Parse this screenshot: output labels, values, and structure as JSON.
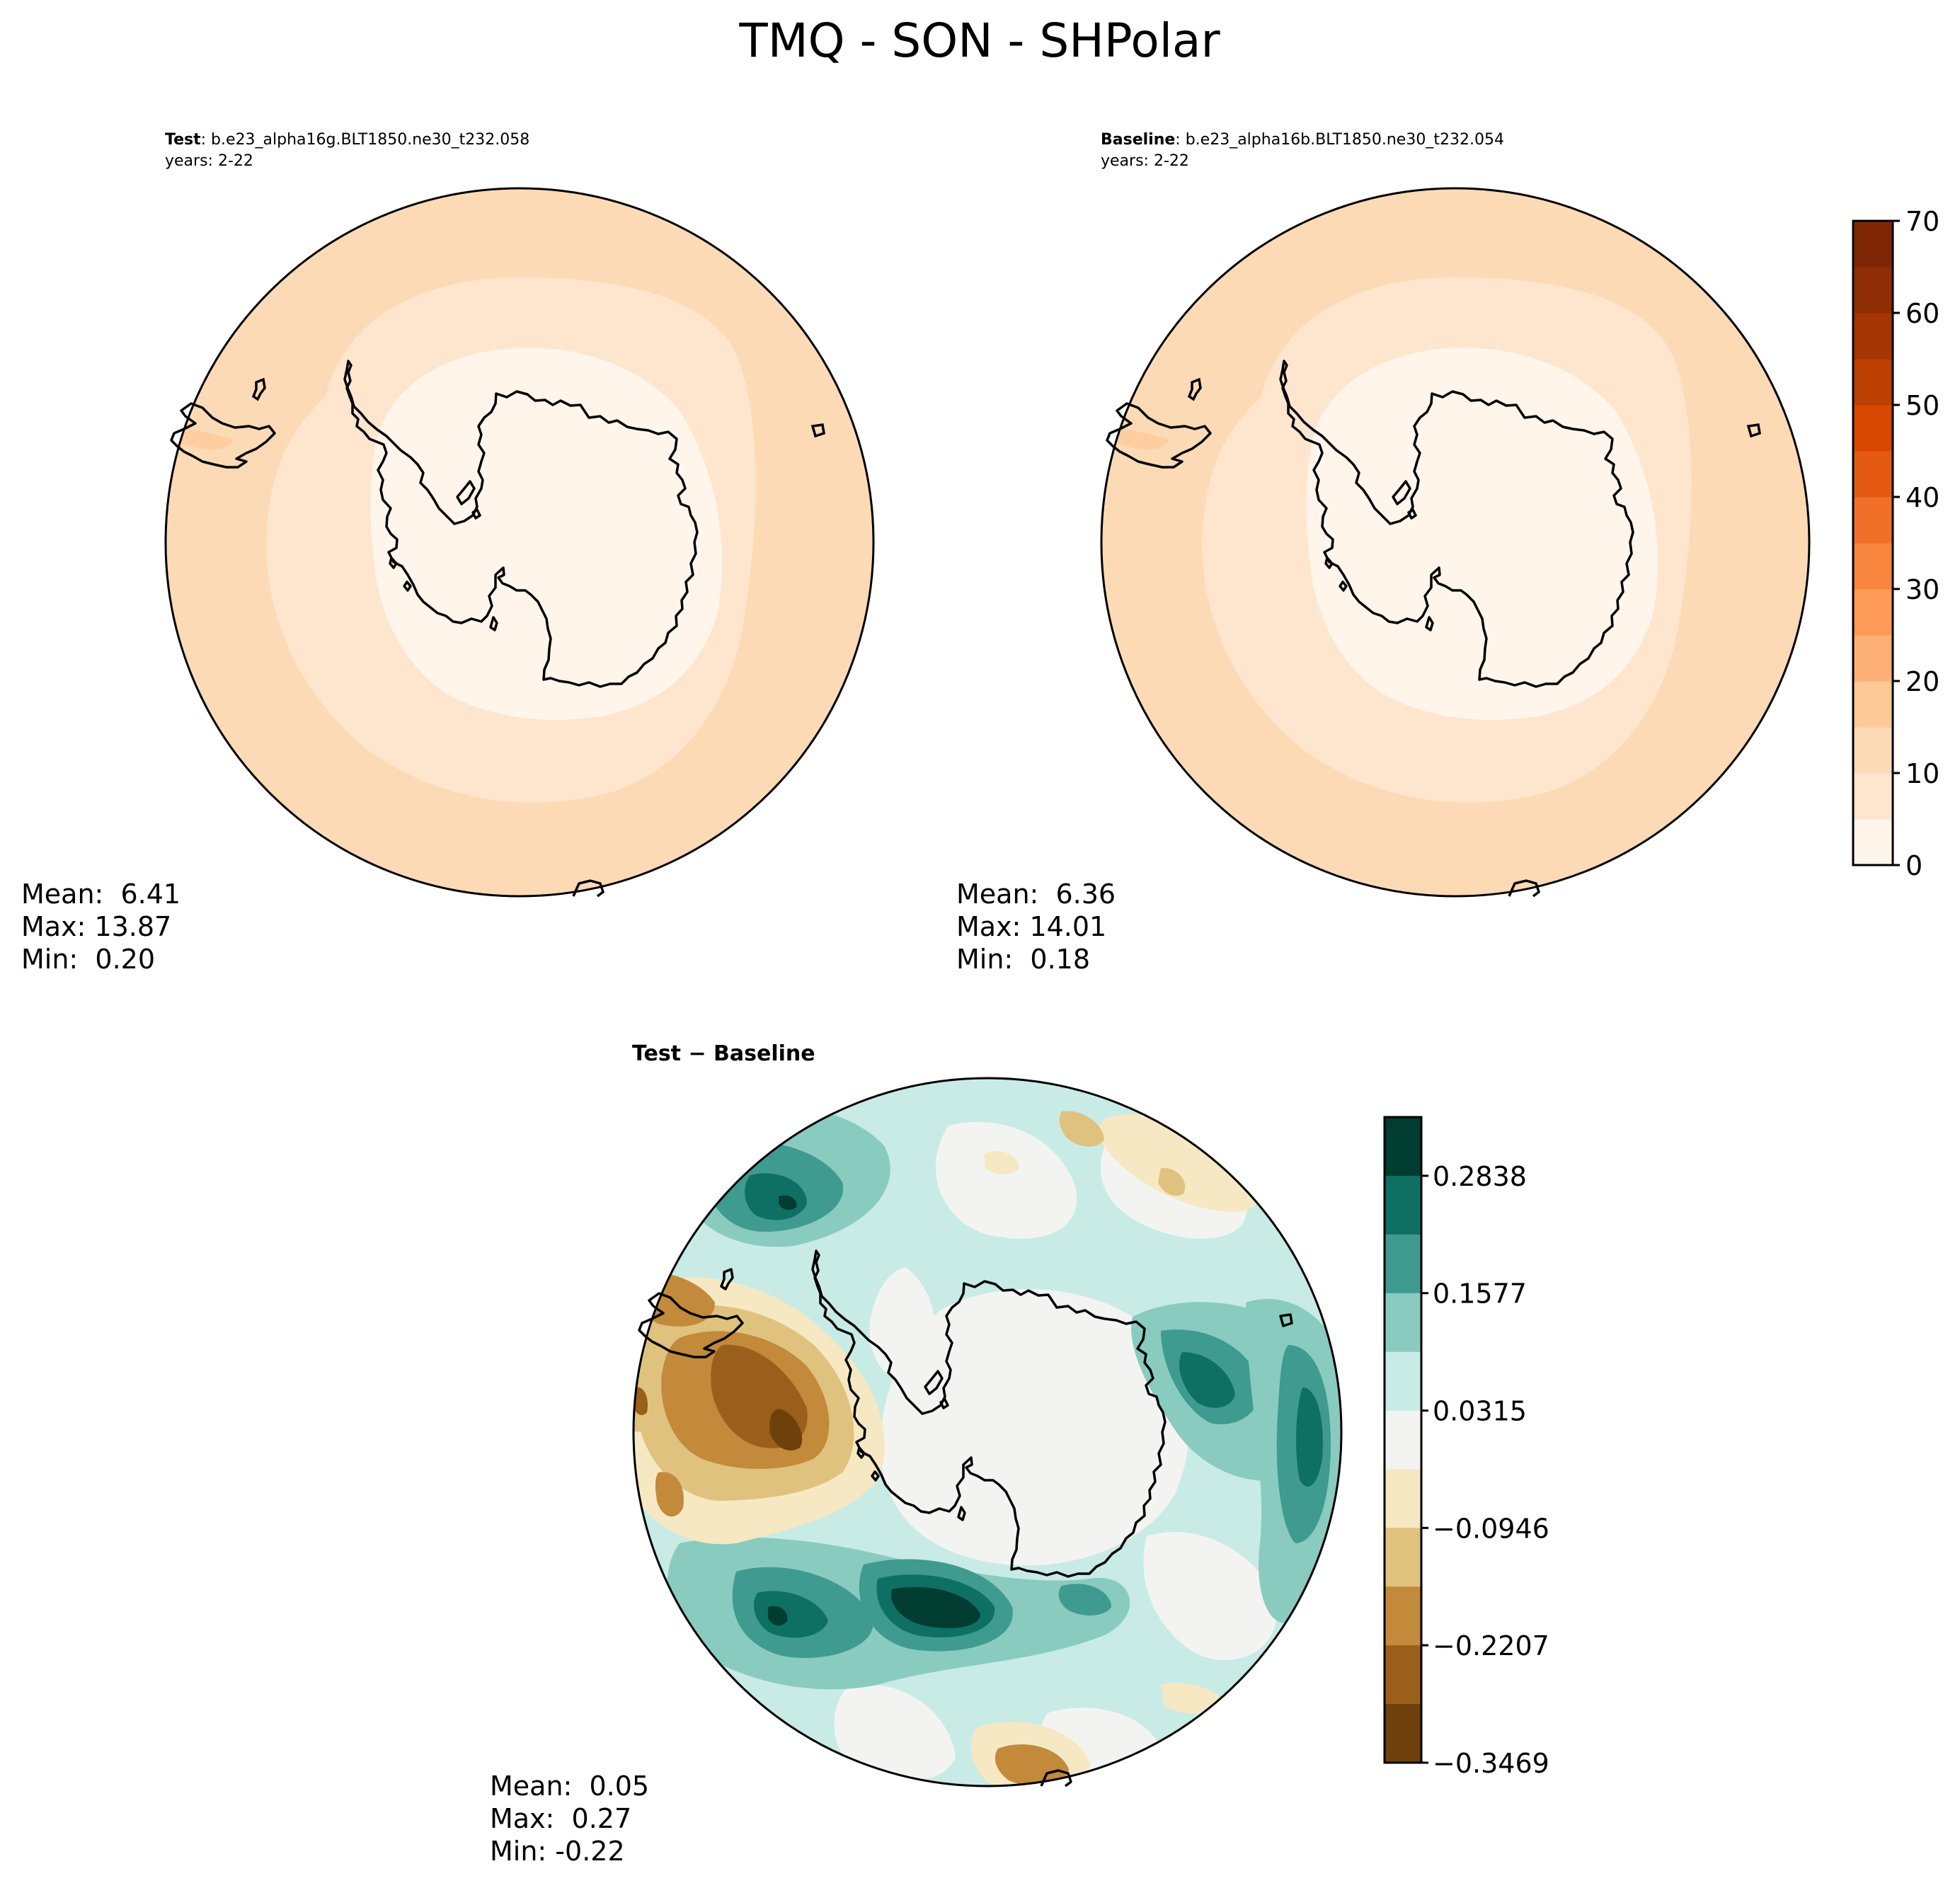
{
  "chart_data": {
    "type": "map-contour",
    "title": "TMQ - SON - SHPolar",
    "panels": [
      {
        "id": "test",
        "label_bold": "Test",
        "label_rest": ": b.e23_alpha16g.BLT1850.ne30_t232.058",
        "years": "years: 2-22",
        "stats": {
          "mean": "Mean:  6.41",
          "max": "Max: 13.87",
          "min": "Min:  0.20"
        },
        "band_values": [
          12.5,
          7.5,
          2.5
        ]
      },
      {
        "id": "baseline",
        "label_bold": "Baseline",
        "label_rest": ": b.e23_alpha16b.BLT1850.ne30_t232.054",
        "years": "years: 2-22",
        "stats": {
          "mean": "Mean:  6.36",
          "max": "Max: 14.01",
          "min": "Min:  0.18"
        },
        "band_values": [
          12.5,
          7.5,
          2.5
        ]
      },
      {
        "id": "difference",
        "label_bold": "Test − Baseline",
        "stats": {
          "mean": "Mean:  0.05",
          "max": "Max:  0.27",
          "min": "Min: -0.22"
        }
      }
    ],
    "colorbar_main": {
      "range": [
        0,
        70
      ],
      "levels": [
        0,
        5,
        10,
        15,
        20,
        25,
        30,
        35,
        40,
        45,
        50,
        55,
        60,
        65,
        70
      ],
      "ticks": [
        "0",
        "10",
        "20",
        "30",
        "40",
        "50",
        "60",
        "70"
      ],
      "colors": [
        "#fff5eb",
        "#fee6ce",
        "#fddab6",
        "#fdc997",
        "#fdb076",
        "#fd9a57",
        "#f8853e",
        "#f07029",
        "#e45a13",
        "#d94801",
        "#be3f02",
        "#a63603",
        "#8f2d04",
        "#7f2704"
      ]
    },
    "colorbar_diff": {
      "range": [
        -0.3469,
        0.3469
      ],
      "ticks": [
        "0.2838",
        "0.1577",
        "0.0315",
        "−0.0946",
        "−0.2207",
        "−0.3469"
      ],
      "colors": [
        "#003c30",
        "#0e6f63",
        "#3f9a8f",
        "#89cbbf",
        "#c9ebe5",
        "#f3f4f2",
        "#f6e8c3",
        "#dfc27d",
        "#c28a3a",
        "#9a5f1b",
        "#6e410c"
      ]
    }
  }
}
